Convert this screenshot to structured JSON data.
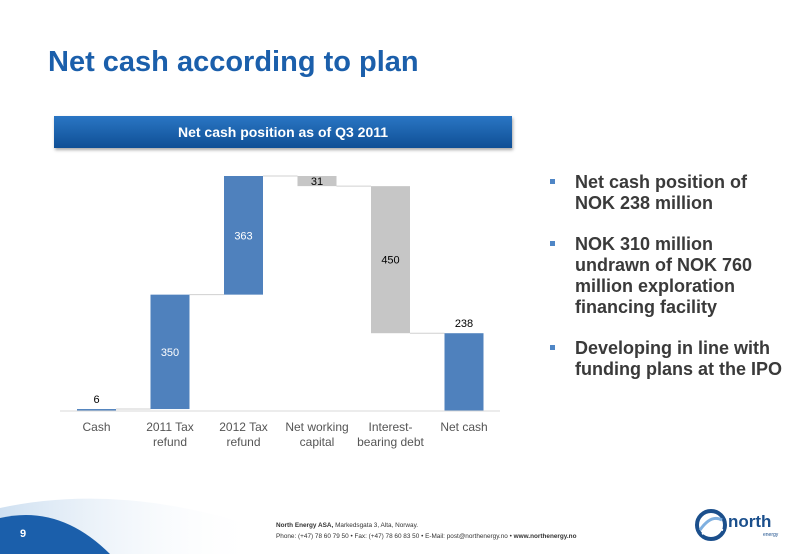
{
  "slide": {
    "title": "Net cash according to plan",
    "page_number": "9"
  },
  "chart_header": "Net cash position as of Q3 2011",
  "bullets": [
    "Net cash position of NOK 238 million",
    "NOK 310 million undrawn of NOK 760 million exploration financing facility",
    "Developing in line with funding plans at the IPO"
  ],
  "footer": {
    "company_line_bold": "North Energy ASA,",
    "company_line": "Markedsgata 3, Alta, Norway.",
    "contact_line": "Phone: (+47) 78 60 79 50  •  Fax: (+47) 78 60 83 50  •  E-Mail: post@northenergy.no  •",
    "website": "www.northenergy.no"
  },
  "logo": {
    "word": "north",
    "sub": "energy"
  },
  "colors": {
    "title": "#1b5fab",
    "increase": "#4f81bd",
    "decrease": "#c6c6c6",
    "header": "#1a5fa8"
  },
  "chart_data": {
    "type": "waterfall",
    "title": "Net cash position as of Q3 2011",
    "categories": [
      "Cash",
      "2011 Tax refund",
      "2012 Tax refund",
      "Net working capital",
      "Interest-bearing debt",
      "Net cash"
    ],
    "category_lines": [
      [
        "Cash"
      ],
      [
        "2011 Tax",
        "refund"
      ],
      [
        "2012 Tax",
        "refund"
      ],
      [
        "Net working",
        "capital"
      ],
      [
        "Interest-",
        "bearing debt"
      ],
      [
        "Net cash"
      ]
    ],
    "values": [
      6,
      350,
      363,
      -31,
      -450,
      238
    ],
    "labels": [
      "6",
      "350",
      "363",
      "31",
      "450",
      "238"
    ],
    "kinds": [
      "total",
      "increase",
      "increase",
      "decrease",
      "decrease",
      "total"
    ],
    "ylim": [
      0,
      719
    ],
    "xlabel": "",
    "ylabel": ""
  }
}
